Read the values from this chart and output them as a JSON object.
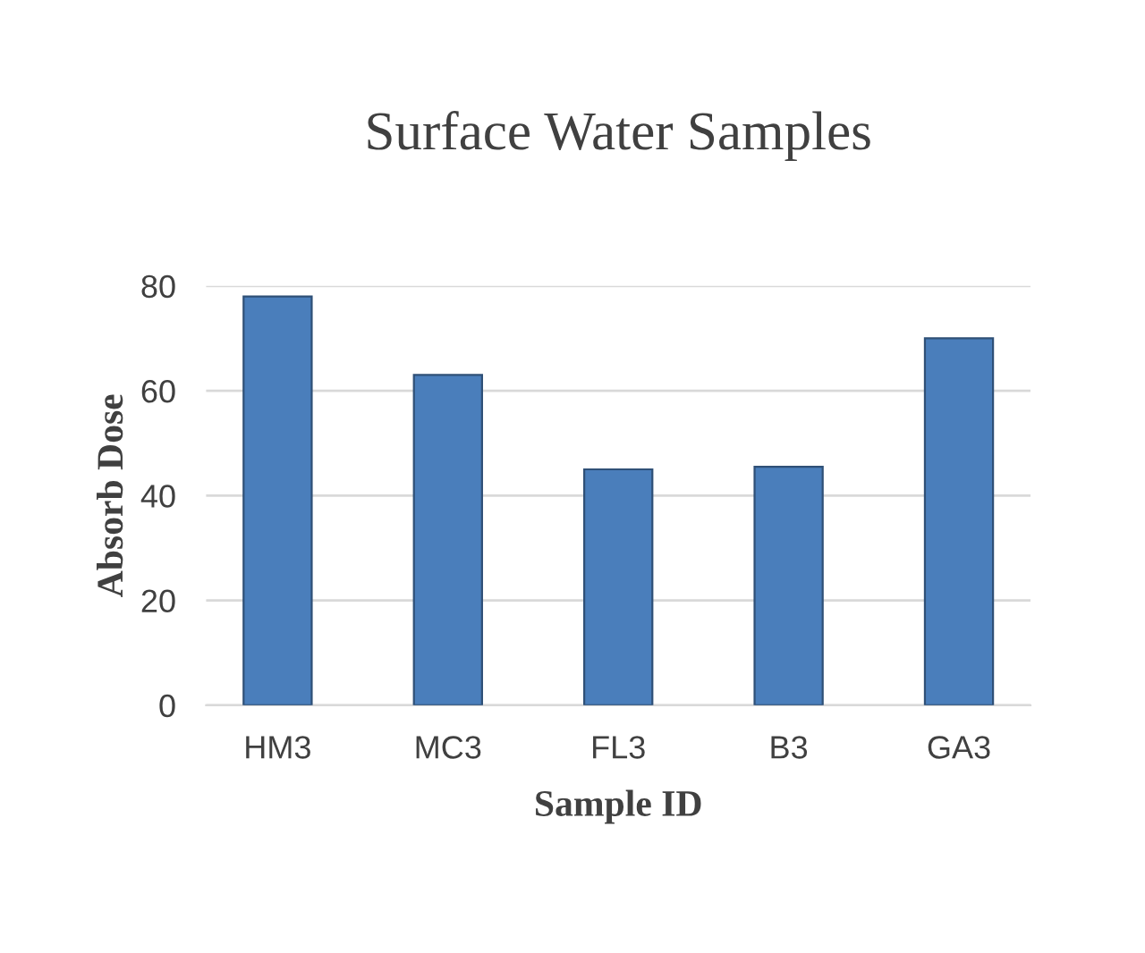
{
  "chart_data": {
    "type": "bar",
    "title": "Surface Water Samples",
    "xlabel": "Sample ID",
    "ylabel": "Absorb Dose",
    "categories": [
      "HM3",
      "MC3",
      "FL3",
      "B3",
      "GA3"
    ],
    "values": [
      78,
      63,
      45,
      45.5,
      70
    ],
    "color": "#4a7ebb",
    "ylim": [
      0,
      80
    ],
    "yticks": [
      0,
      20,
      40,
      60,
      80
    ],
    "grid": "y",
    "legend": false
  }
}
